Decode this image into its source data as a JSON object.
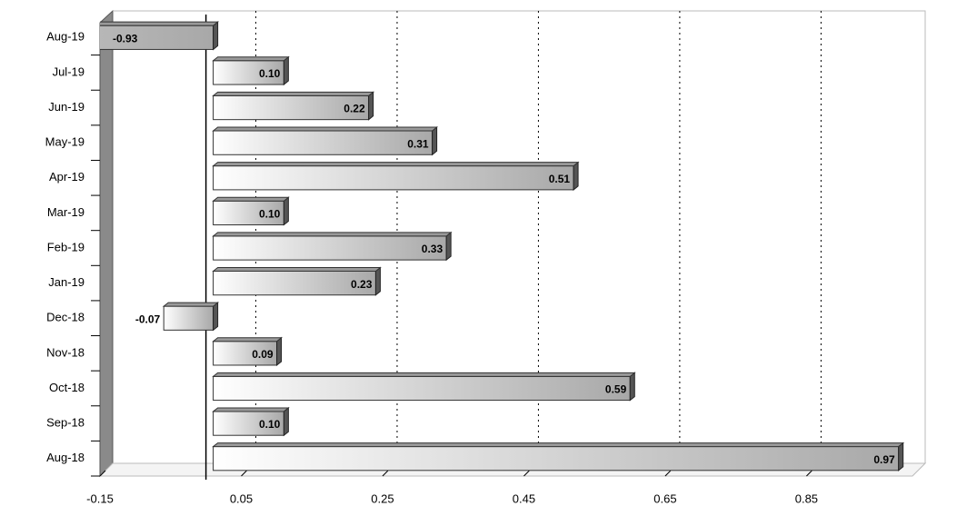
{
  "chart_data": {
    "type": "bar",
    "orientation": "horizontal",
    "categories": [
      "Aug-18",
      "Sep-18",
      "Oct-18",
      "Nov-18",
      "Dec-18",
      "Jan-19",
      "Feb-19",
      "Mar-19",
      "Apr-19",
      "May-19",
      "Jun-19",
      "Jul-19",
      "Aug-19"
    ],
    "values": [
      0.97,
      0.1,
      0.59,
      0.09,
      -0.07,
      0.23,
      0.33,
      0.1,
      0.51,
      0.31,
      0.22,
      0.1,
      -0.93
    ],
    "value_labels": [
      "0.97",
      "0.10",
      "0.59",
      "0.09",
      "-0.07",
      "0.23",
      "0.33",
      "0.10",
      "0.51",
      "0.31",
      "0.22",
      "0.10",
      "-0.93"
    ],
    "color": "#b8b8b8",
    "xlim": [
      -0.15,
      1.0
    ],
    "xticks": [
      -0.15,
      0.05,
      0.25,
      0.45,
      0.65,
      0.85
    ],
    "grid": true
  }
}
